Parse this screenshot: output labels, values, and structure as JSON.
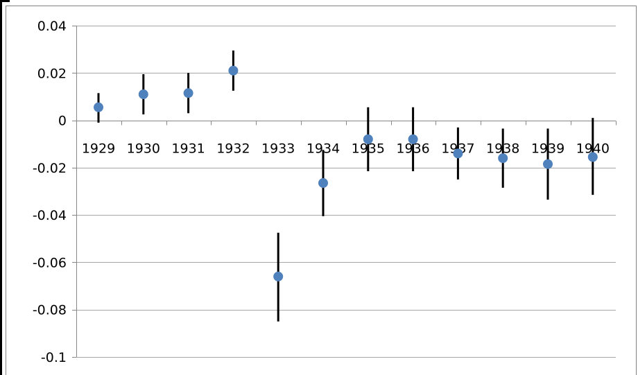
{
  "chart_data": {
    "type": "scatter",
    "title": "",
    "xlabel": "",
    "ylabel": "",
    "categories": [
      "1929",
      "1930",
      "1931",
      "1932",
      "1933",
      "1934",
      "1935",
      "1936",
      "1937",
      "1938",
      "1939",
      "1940"
    ],
    "values": [
      0.0055,
      0.011,
      0.0115,
      0.021,
      -0.066,
      -0.0265,
      -0.008,
      -0.008,
      -0.014,
      -0.016,
      -0.0185,
      -0.0155
    ],
    "error_low": [
      -0.001,
      0.0025,
      0.003,
      0.0125,
      -0.085,
      -0.0405,
      -0.0215,
      -0.0215,
      -0.025,
      -0.0285,
      -0.0335,
      -0.0315
    ],
    "error_high": [
      0.0115,
      0.0195,
      0.02,
      0.0295,
      -0.0475,
      -0.0125,
      0.0055,
      0.0055,
      -0.003,
      -0.0035,
      -0.0035,
      0.001
    ],
    "ylim": [
      -0.1,
      0.04
    ],
    "y_ticks": [
      0.04,
      0.02,
      0,
      -0.02,
      -0.04,
      -0.06,
      -0.08,
      -0.1
    ],
    "y_tick_labels": [
      "0.04",
      "0.02",
      "0",
      "-0.02",
      "-0.04",
      "-0.06",
      "-0.08",
      "-0.1"
    ],
    "grid": true,
    "legend": "none",
    "colors": {
      "marker": "#4f81bd",
      "error_bar": "#000000",
      "grid": "#a6a6a6",
      "axis": "#868686",
      "frame": "#7f7f7f"
    }
  }
}
